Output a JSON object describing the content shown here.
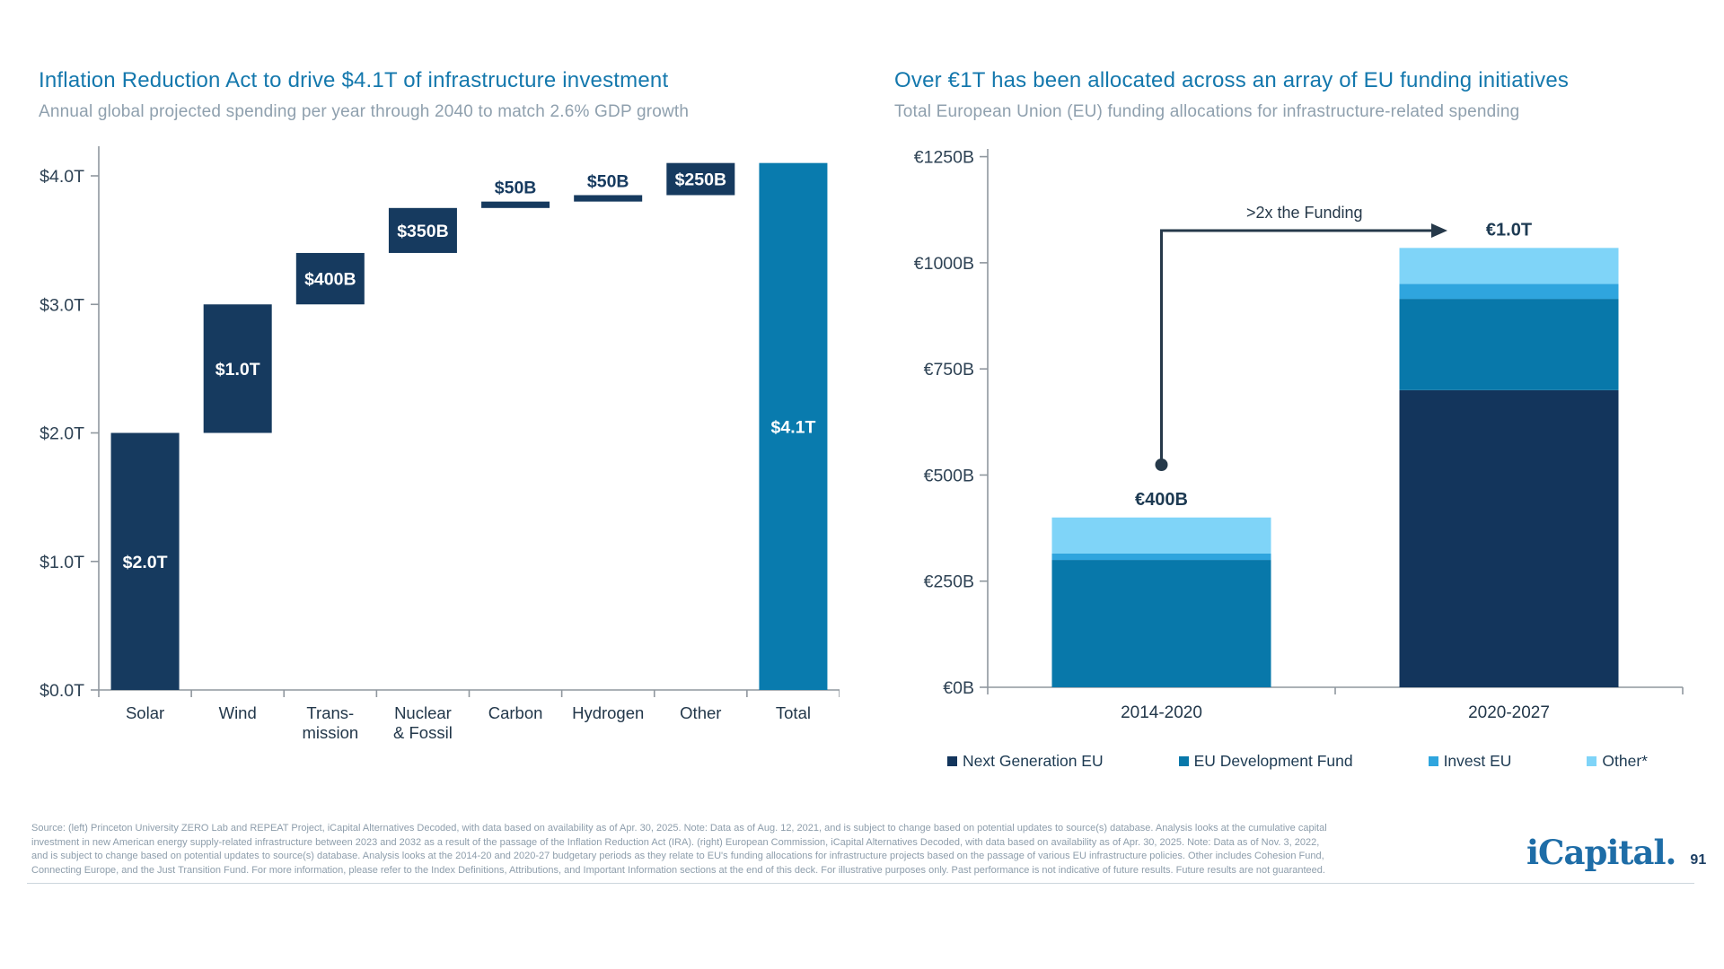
{
  "left_chart": {
    "title": "Inflation Reduction Act to drive $4.1T of infrastructure investment",
    "subtitle": "Annual global projected spending per year through 2040 to match 2.6% GDP growth"
  },
  "right_chart": {
    "title": "Over €1T has been allocated across an array of EU funding initiatives",
    "subtitle": "Total European Union (EU) funding allocations for infrastructure-related spending"
  },
  "chart_data": [
    {
      "type": "bar",
      "variant": "waterfall",
      "title": "Inflation Reduction Act to drive $4.1T of infrastructure investment",
      "subtitle": "Annual global projected spending per year through 2040 to match 2.6% GDP growth",
      "unit": "trillion USD per year",
      "categories": [
        "Solar",
        "Wind",
        "Trans-\nmission",
        "Nuclear\n& Fossil",
        "Carbon",
        "Hydrogen",
        "Other",
        "Total"
      ],
      "values": [
        2.0,
        1.0,
        0.4,
        0.35,
        0.05,
        0.05,
        0.25,
        4.1
      ],
      "value_labels": [
        "$2.0T",
        "$1.0T",
        "$400B",
        "$350B",
        "$50B",
        "$50B",
        "$250B",
        "$4.1T"
      ],
      "is_total": [
        false,
        false,
        false,
        false,
        false,
        false,
        false,
        true
      ],
      "label_placement": [
        "inside",
        "inside",
        "inside",
        "inside",
        "above",
        "above",
        "inside",
        "inside"
      ],
      "ylim": [
        0,
        4.3
      ],
      "yticks": [
        0,
        1,
        2,
        3,
        4
      ],
      "ytick_labels": [
        "$0.0T",
        "$1.0T",
        "$2.0T",
        "$3.0T",
        "$4.0T"
      ],
      "grid": false,
      "colors": {
        "step": "#163a5f",
        "total": "#097bae",
        "label_inside": "#ffffff",
        "label_above": "#163a5f"
      }
    },
    {
      "type": "bar",
      "variant": "stacked",
      "title": "Over €1T has been allocated across an array of EU funding initiatives",
      "subtitle": "Total European Union (EU) funding allocations for infrastructure-related spending",
      "unit": "billion EUR",
      "categories": [
        "2014-2020",
        "2020-2027"
      ],
      "series": [
        {
          "name": "Next Generation EU",
          "color": "#13355c",
          "values": [
            0,
            700
          ]
        },
        {
          "name": "EU Development Fund",
          "color": "#0878aa",
          "values": [
            300,
            215
          ]
        },
        {
          "name": "Invest EU",
          "color": "#2fa5de",
          "values": [
            15,
            35
          ]
        },
        {
          "name": "Other*",
          "color": "#7fd4f8",
          "values": [
            85,
            85
          ]
        }
      ],
      "totals_labels": [
        "€400B",
        "€1.0T"
      ],
      "ylim": [
        0,
        1250
      ],
      "yticks": [
        0,
        250,
        500,
        750,
        1000,
        1250
      ],
      "ytick_labels": [
        "€0B",
        "€250B",
        "€500B",
        "€750B",
        "€1000B",
        "€1250B"
      ],
      "grid": false,
      "legend_position": "bottom",
      "annotation": {
        "text": ">2x the Funding",
        "from_category": "2014-2020",
        "to_category": "2020-2027"
      }
    }
  ],
  "footer": {
    "lines": [
      "Source: (left) Princeton University ZERO Lab and REPEAT Project, iCapital Alternatives Decoded, with data based on availability as of Apr. 30, 2025. Note: Data as of Aug. 12, 2021, and is subject to change based on potential updates to source(s) database. Analysis looks at the cumulative capital",
      "investment in new American energy supply-related infrastructure between 2023 and 2032 as a result of the passage of the Inflation Reduction Act (IRA). (right) European Commission, iCapital Alternatives Decoded, with data based on availability as of Apr. 30, 2025. Note: Data as of Nov. 3, 2022,",
      "and is subject to change based on potential updates to source(s) database. Analysis looks at the 2014-20 and 2020-27 budgetary periods as they relate to EU's funding allocations for infrastructure projects based on the passage of various EU infrastructure policies. Other includes Cohesion Fund,",
      "Connecting Europe, and the Just Transition Fund. For more information, please refer to the Index Definitions, Attributions, and Important Information sections at the end of this deck. For illustrative purposes only. Past performance is not indicative of future results. Future results are not guaranteed."
    ]
  },
  "brand": {
    "logo": "iCapital.",
    "page_number": "91"
  },
  "style_colors": {
    "title_blue": "#1478ad",
    "subtitle_gray": "#8fa0ae",
    "axis_gray": "#8f979e",
    "tick_text": "#2e4254",
    "annotation": "#26394a"
  }
}
